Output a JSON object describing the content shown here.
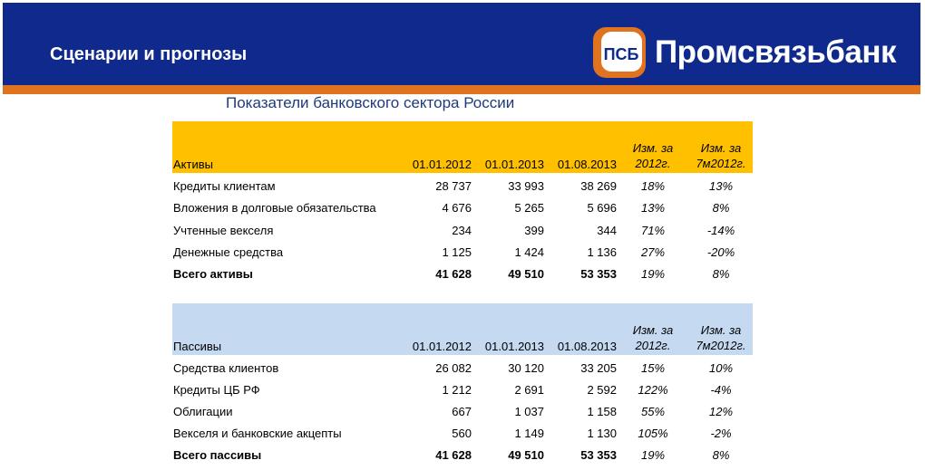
{
  "header": {
    "title": "Сценарии и прогнозы",
    "brand_name": "Промсвязьбанк",
    "logo_text": "ПСБ"
  },
  "colors": {
    "header_bg": "#0f2a8c",
    "accent_orange": "#e0731f",
    "assets_header_bg": "#ffc000",
    "liabilities_header_bg": "#c5d9f1",
    "subtitle": "#1f3a7a"
  },
  "subtitle": "Показатели банковского сектора России",
  "assets": {
    "columns": [
      "Активы",
      "01.01.2012",
      "01.01.2013",
      "01.08.2013",
      "Изм. за",
      "2012г.",
      "Изм. за",
      "7м2012г."
    ],
    "rows": [
      {
        "label": "Кредиты клиентам",
        "v1": "28 737",
        "v2": "33 993",
        "v3": "38 269",
        "ch1": "18%",
        "ch2": "13%"
      },
      {
        "label": "Вложения в долговые обязательства",
        "v1": "4 676",
        "v2": "5 265",
        "v3": "5 696",
        "ch1": "13%",
        "ch2": "8%"
      },
      {
        "label": "Учтенные векселя",
        "v1": "234",
        "v2": "399",
        "v3": "344",
        "ch1": "71%",
        "ch2": "-14%"
      },
      {
        "label": "Денежные средства",
        "v1": "1 125",
        "v2": "1 424",
        "v3": "1 136",
        "ch1": "27%",
        "ch2": "-20%"
      },
      {
        "label": "Всего активы",
        "v1": "41 628",
        "v2": "49 510",
        "v3": "53 353",
        "ch1": "19%",
        "ch2": "8%"
      }
    ]
  },
  "liabilities": {
    "columns": [
      "Пассивы",
      "01.01.2012",
      "01.01.2013",
      "01.08.2013",
      "Изм. за",
      "2012г.",
      "Изм. за",
      "7м2012г."
    ],
    "rows": [
      {
        "label": "Средства клиентов",
        "v1": "26 082",
        "v2": "30 120",
        "v3": "33 205",
        "ch1": "15%",
        "ch2": "10%"
      },
      {
        "label": "Кредиты ЦБ РФ",
        "v1": "1 212",
        "v2": "2 691",
        "v3": "2 592",
        "ch1": "122%",
        "ch2": "-4%"
      },
      {
        "label": "Облигации",
        "v1": "667",
        "v2": "1 037",
        "v3": "1 158",
        "ch1": "55%",
        "ch2": "12%"
      },
      {
        "label": "Векселя и банковские акцепты",
        "v1": "560",
        "v2": "1 149",
        "v3": "1 130",
        "ch1": "105%",
        "ch2": "-2%"
      },
      {
        "label": "Всего пассивы",
        "v1": "41 628",
        "v2": "49 510",
        "v3": "53 353",
        "ch1": "19%",
        "ch2": "8%"
      }
    ]
  }
}
